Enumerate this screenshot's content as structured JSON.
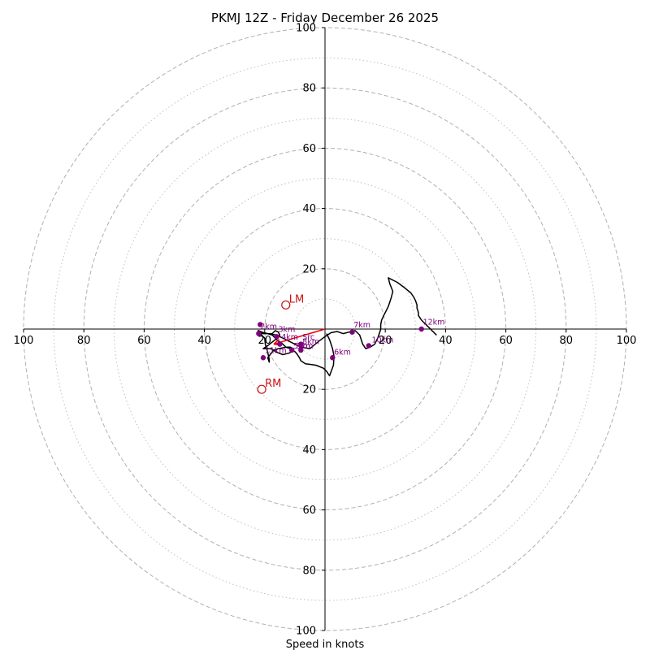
{
  "chart_data": {
    "type": "hodograph",
    "title": "PKMJ 12Z - Friday December 26 2025",
    "xlabel": "Speed in knots",
    "units": "knots",
    "range": [
      -100,
      100
    ],
    "x_ticks": [
      "100",
      "80",
      "60",
      "40",
      "20",
      "20",
      "40",
      "60",
      "80",
      "100"
    ],
    "x_tick_values": [
      -100,
      -80,
      -60,
      -40,
      -20,
      20,
      40,
      60,
      80,
      100
    ],
    "y_ticks": [
      "100",
      "80",
      "60",
      "40",
      "20",
      "20",
      "40",
      "60",
      "80",
      "100"
    ],
    "y_tick_values": [
      100,
      80,
      60,
      40,
      20,
      -20,
      -40,
      -60,
      -80,
      -100
    ],
    "rings_major": [
      20,
      40,
      60,
      80,
      100
    ],
    "rings_minor": [
      10,
      30,
      50,
      70,
      90
    ],
    "colors": {
      "trace": "#000000",
      "markers": "#800080",
      "motion": "#cc1111",
      "shear": "#ee0000",
      "grid": "#b0b0b0",
      "axis": "#000000"
    },
    "trace": [
      [
        0.5,
        -1.5
      ],
      [
        1.5,
        -3.5
      ],
      [
        2.5,
        -6.5
      ],
      [
        3,
        -9
      ],
      [
        2.8,
        -12
      ],
      [
        1.5,
        -15.5
      ],
      [
        0.5,
        -14
      ],
      [
        -0.5,
        -13
      ],
      [
        -3,
        -12
      ],
      [
        -6.5,
        -11.5
      ],
      [
        -8,
        -10.5
      ],
      [
        -8.5,
        -9.5
      ],
      [
        -9.5,
        -8
      ],
      [
        -10,
        -7.5
      ],
      [
        -11.5,
        -6.5
      ],
      [
        -13,
        -6
      ],
      [
        -14.5,
        -4.5
      ],
      [
        -15.5,
        -4
      ],
      [
        -16,
        -3.5
      ],
      [
        -17.5,
        -2
      ],
      [
        -19,
        -1.5
      ],
      [
        -20.5,
        -1.5
      ],
      [
        -21.5,
        -1.5
      ],
      [
        -22,
        -1
      ],
      [
        -22.2,
        -0.5
      ],
      [
        -21.5,
        -1.5
      ],
      [
        -20,
        -3
      ],
      [
        -19.8,
        -5
      ],
      [
        -19.2,
        -7
      ],
      [
        -18.5,
        -10
      ],
      [
        -18.5,
        -11
      ],
      [
        -19,
        -9.5
      ],
      [
        -17,
        -7
      ],
      [
        -15.5,
        -6.5
      ],
      [
        -13,
        -6
      ],
      [
        -11.5,
        -6
      ],
      [
        -10.5,
        -6.5
      ],
      [
        -11,
        -7.5
      ],
      [
        -12,
        -8
      ],
      [
        -14,
        -8.5
      ],
      [
        -16.5,
        -7.5
      ],
      [
        -17,
        -7
      ],
      [
        -18,
        -6.5
      ],
      [
        -19.5,
        -6.5
      ],
      [
        -20,
        -6.5
      ],
      [
        -20.5,
        -6.5
      ],
      [
        -19,
        -5.5
      ],
      [
        -16.5,
        -3.5
      ],
      [
        -15,
        -2
      ],
      [
        -15.5,
        -1
      ],
      [
        -16.5,
        -0.5
      ],
      [
        -17.5,
        -1.5
      ],
      [
        -18.5,
        -1.5
      ],
      [
        -20,
        -1.5
      ],
      [
        -21.5,
        -1.2
      ],
      [
        -22,
        -0.5
      ],
      [
        -21,
        -1
      ],
      [
        -19,
        -1.5
      ],
      [
        -16,
        -2
      ],
      [
        -10,
        -5
      ],
      [
        -8,
        -6
      ],
      [
        -5,
        -6.5
      ],
      [
        -2,
        -4
      ],
      [
        0,
        -2.5
      ],
      [
        2,
        -1.2
      ],
      [
        4,
        -0.8
      ],
      [
        6,
        -1.5
      ],
      [
        8,
        -1
      ],
      [
        10,
        -0.5
      ],
      [
        11.5,
        -2
      ],
      [
        12.5,
        -5
      ],
      [
        13.5,
        -6.5
      ],
      [
        15,
        -6
      ],
      [
        16.5,
        -5
      ],
      [
        17.5,
        -3
      ],
      [
        18,
        -1.5
      ],
      [
        18.5,
        0
      ],
      [
        18.5,
        1.5
      ],
      [
        18.8,
        3
      ],
      [
        19.5,
        4.5
      ],
      [
        20,
        5.5
      ],
      [
        21,
        7.5
      ],
      [
        21.5,
        9
      ],
      [
        22,
        10.5
      ],
      [
        22.5,
        12.5
      ],
      [
        21.5,
        15
      ],
      [
        21,
        17
      ],
      [
        24,
        15.5
      ],
      [
        26,
        14
      ],
      [
        28.5,
        12
      ],
      [
        29.5,
        10.5
      ],
      [
        30,
        9.5
      ],
      [
        30.5,
        8
      ],
      [
        30.5,
        7
      ],
      [
        31,
        5.5
      ],
      [
        31,
        4.5
      ],
      [
        32,
        3
      ],
      [
        33,
        2
      ],
      [
        33.5,
        1.5
      ],
      [
        34,
        1
      ],
      [
        34.5,
        0.5
      ],
      [
        35,
        0
      ],
      [
        35.5,
        -0.5
      ],
      [
        36,
        -1
      ],
      [
        36.5,
        -1.5
      ],
      [
        37,
        -2
      ]
    ],
    "points": [
      {
        "label": "1km",
        "u": -21.5,
        "v": 1.5,
        "show": false
      },
      {
        "label": "2km",
        "u": -22,
        "v": -1.5,
        "show": true
      },
      {
        "label": "3km",
        "u": -16,
        "v": -2.5,
        "show": true
      },
      {
        "label": "4km",
        "u": -15,
        "v": -5,
        "show": true
      },
      {
        "label": "5km",
        "u": -11,
        "v": -7,
        "show": true
      },
      {
        "label": "6km",
        "u": 2.5,
        "v": -9.5,
        "show": true
      },
      {
        "label": "7km",
        "u": 9,
        "v": -1,
        "show": true
      },
      {
        "label": "8km",
        "u": -8,
        "v": -5,
        "show": false
      },
      {
        "label": "9km",
        "u": -8,
        "v": -7,
        "show": true
      },
      {
        "label": "10km",
        "u": 14.5,
        "v": -5.5,
        "show": true
      },
      {
        "label": "11km",
        "u": -20.5,
        "v": -9.5,
        "show": true
      },
      {
        "label": "12km",
        "u": 32,
        "v": 0,
        "show": true
      }
    ],
    "marker_labels": [
      {
        "text": "2km",
        "u": -21.5,
        "v": 0
      },
      {
        "text": "3km",
        "u": -15.5,
        "v": -1
      },
      {
        "text": "4km",
        "u": -14.5,
        "v": -3.5
      },
      {
        "text": "Src",
        "u": -7.5,
        "v": -3.5
      },
      {
        "text": "5km",
        "u": -10.5,
        "v": -6.5
      },
      {
        "text": "6km",
        "u": 3,
        "v": -8.5
      },
      {
        "text": "7km",
        "u": 9.5,
        "v": 0.5
      },
      {
        "text": "8km",
        "u": -7.5,
        "v": -5
      },
      {
        "text": "9km",
        "u": -9.5,
        "v": -6.5
      },
      {
        "text": "10km",
        "u": 15.5,
        "v": -4.5
      },
      {
        "text": "11km",
        "u": -20,
        "v": -8
      },
      {
        "text": "12km",
        "u": 32.5,
        "v": 1.5
      }
    ],
    "storm_motion": {
      "lm": {
        "label": "LM",
        "u": -13,
        "v": 8
      },
      "rm": {
        "label": "RM",
        "u": -21,
        "v": -20
      }
    },
    "shear_vector": {
      "from": [
        0,
        0
      ],
      "to": [
        -17,
        -5
      ]
    }
  }
}
